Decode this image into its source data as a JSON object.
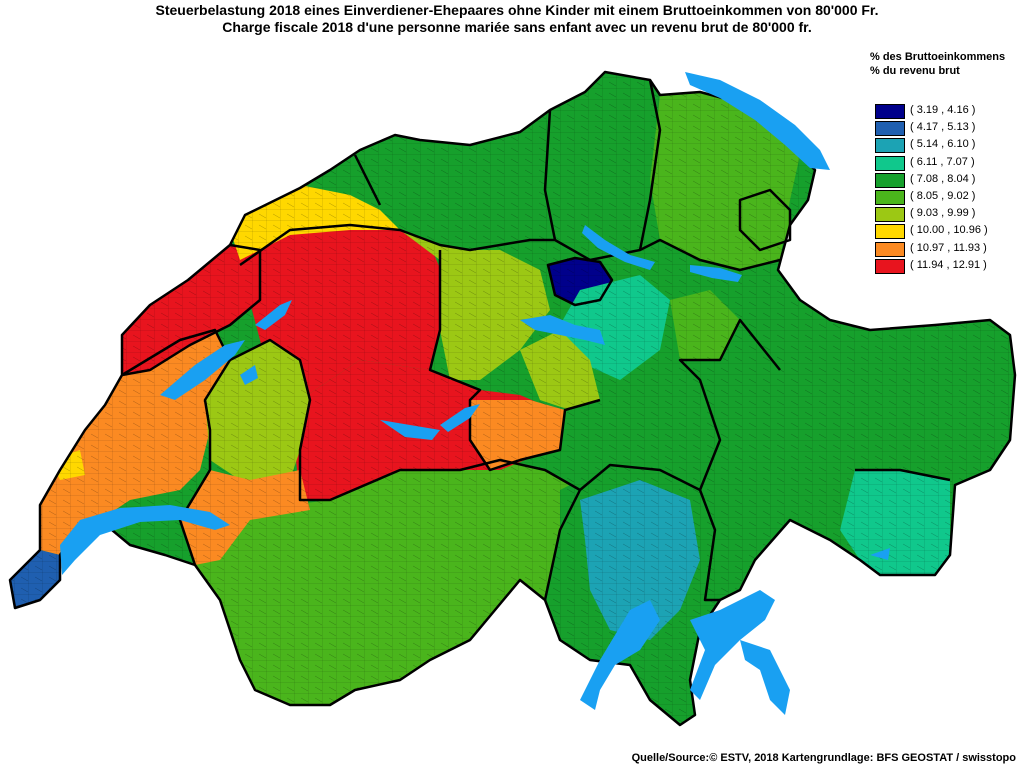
{
  "title": {
    "line_de": "Steuerbelastung 2018 eines Einverdiener-Ehepaares ohne Kinder mit einem Bruttoeinkommen von 80'000 Fr.",
    "line_fr": "Charge fiscale 2018 d'une personne mariée sans enfant avec un revenu brut de 80'000 fr."
  },
  "legend": {
    "title_de": "% des Bruttoeinkommens",
    "title_fr": "% du revenu brut",
    "classes": [
      {
        "label": "( 3.19 , 4.16 )",
        "color": "#00008b"
      },
      {
        "label": "( 4.17 , 5.13 )",
        "color": "#1f5fb0"
      },
      {
        "label": "( 5.14 , 6.10 )",
        "color": "#1ca3b4"
      },
      {
        "label": "( 6.11 , 7.07 )",
        "color": "#10c88c"
      },
      {
        "label": "( 7.08 , 8.04 )",
        "color": "#16a02c"
      },
      {
        "label": "( 8.05 , 9.02 )",
        "color": "#4ab51c"
      },
      {
        "label": "( 9.03 , 9.99 )",
        "color": "#9cc814"
      },
      {
        "label": "( 10.00 , 10.96 )",
        "color": "#ffd800"
      },
      {
        "label": "( 10.97 , 11.93 )",
        "color": "#fb8a22"
      },
      {
        "label": "( 11.94 , 12.91 )",
        "color": "#e8141e"
      }
    ]
  },
  "map": {
    "lake_color": "#19a0f2",
    "border_color": "#000000"
  },
  "source": "Quelle/Source:© ESTV, 2018 Kartengrundlage: BFS GEOSTAT / swisstopo"
}
